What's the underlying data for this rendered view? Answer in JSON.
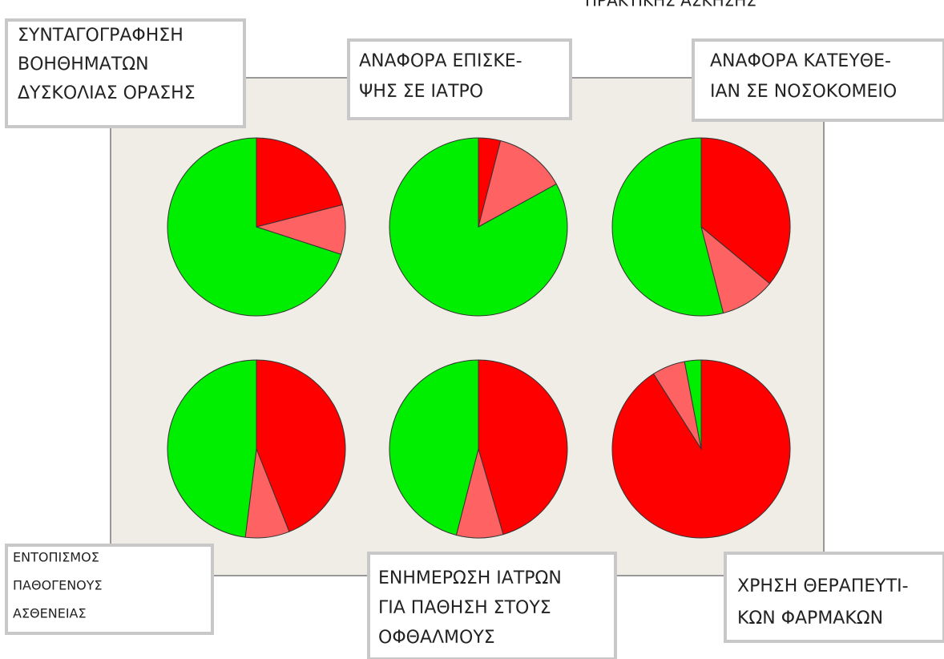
{
  "heading": "ΠΡΑΚΤΙΚΗΣ ΑΣΚΗΣΗΣ",
  "chart_data": [
    {
      "type": "pie",
      "title": [
        "ΣΥΝΤΑΓΟΓΡΑΦΗΣΗ",
        "ΒΟΗΘΗΜΑΤΩΝ",
        "ΔΥΣΚΟΛΙΑΣ ΟΡΑΣΗΣ"
      ],
      "values": [
        21,
        9,
        70
      ],
      "colors": [
        "#ff0000",
        "#ff6262",
        "#00ee00"
      ]
    },
    {
      "type": "pie",
      "title": [
        "ΑΝΑΦΟΡΑ ΕΠΙΣΚΕ-",
        "ΨΗΣ ΣΕ ΙΑΤΡΟ"
      ],
      "values": [
        4,
        13,
        83
      ],
      "colors": [
        "#ff0000",
        "#ff6262",
        "#00ee00"
      ]
    },
    {
      "type": "pie",
      "title": [
        "ΑΝΑΦΟΡΑ ΚΑΤΕΥΘΕ-",
        "ΙΑΝ ΣΕ ΝΟΣΟΚΟΜΕΙΟ"
      ],
      "values": [
        36,
        10,
        54
      ],
      "colors": [
        "#ff0000",
        "#ff6262",
        "#00ee00"
      ]
    },
    {
      "type": "pie",
      "title": [
        "ΕΝΤΟΠΙΣΜΟΣ",
        "ΠΑΘΟΓΕΝΟΥΣ",
        "ΑΣΘΕΝΕΙΑΣ"
      ],
      "values": [
        44,
        8,
        48
      ],
      "colors": [
        "#ff0000",
        "#ff6262",
        "#00ee00"
      ]
    },
    {
      "type": "pie",
      "title": [
        "ΕΝΗΜΕΡΩΣΗ ΙΑΤΡΩΝ",
        "ΓΙΑ ΠΑΘΗΣΗ ΣΤΟΥΣ",
        "ΟΦΘΑΛΜΟΥΣ"
      ],
      "values": [
        45.5,
        8.5,
        46
      ],
      "colors": [
        "#ff0000",
        "#ff6262",
        "#00ee00"
      ]
    },
    {
      "type": "pie",
      "title": [
        "ΧΡΗΣΗ ΘΕΡΑΠΕΥΤΙ-",
        "ΚΩΝ ΦΑΡΜΑΚΩΝ"
      ],
      "values": [
        91,
        6,
        3
      ],
      "colors": [
        "#ff0000",
        "#ff6262",
        "#00ee00"
      ]
    }
  ]
}
